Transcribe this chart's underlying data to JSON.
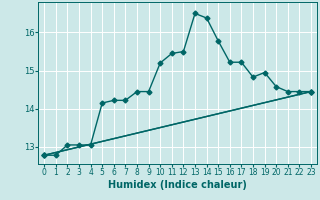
{
  "xlabel": "Humidex (Indice chaleur)",
  "bg_color": "#cce8e8",
  "grid_color": "#ffffff",
  "line_color": "#006666",
  "xlim": [
    -0.5,
    23.5
  ],
  "ylim": [
    12.55,
    16.8
  ],
  "yticks": [
    13,
    14,
    15,
    16
  ],
  "xticks": [
    0,
    1,
    2,
    3,
    4,
    5,
    6,
    7,
    8,
    9,
    10,
    11,
    12,
    13,
    14,
    15,
    16,
    17,
    18,
    19,
    20,
    21,
    22,
    23
  ],
  "line1_x": [
    0,
    1,
    2,
    3,
    4,
    5,
    6,
    7,
    8,
    9,
    10,
    11,
    12,
    13,
    14,
    15,
    16,
    17,
    18,
    19,
    20,
    21,
    22,
    23
  ],
  "line1_y": [
    12.78,
    12.78,
    13.05,
    13.05,
    13.05,
    14.15,
    14.22,
    14.22,
    14.45,
    14.45,
    15.2,
    15.45,
    15.5,
    16.5,
    16.38,
    15.78,
    15.22,
    15.22,
    14.83,
    14.95,
    14.58,
    14.45,
    14.45,
    14.45
  ],
  "line2_x": [
    0,
    2,
    3,
    4,
    5,
    19,
    20,
    21,
    22,
    23
  ],
  "line2_y": [
    12.78,
    13.05,
    13.05,
    13.05,
    13.05,
    14.85,
    14.9,
    14.85,
    14.45,
    14.45
  ],
  "line3_x": [
    0,
    2,
    3,
    4,
    5,
    19,
    20,
    21,
    22,
    23
  ],
  "line3_y": [
    12.78,
    13.05,
    13.05,
    13.05,
    13.05,
    14.35,
    14.45,
    14.45,
    14.45,
    14.45
  ],
  "marker": "D",
  "markersize": 2.5,
  "linewidth": 1.0,
  "tick_fontsize": 5.5,
  "label_fontsize": 7
}
